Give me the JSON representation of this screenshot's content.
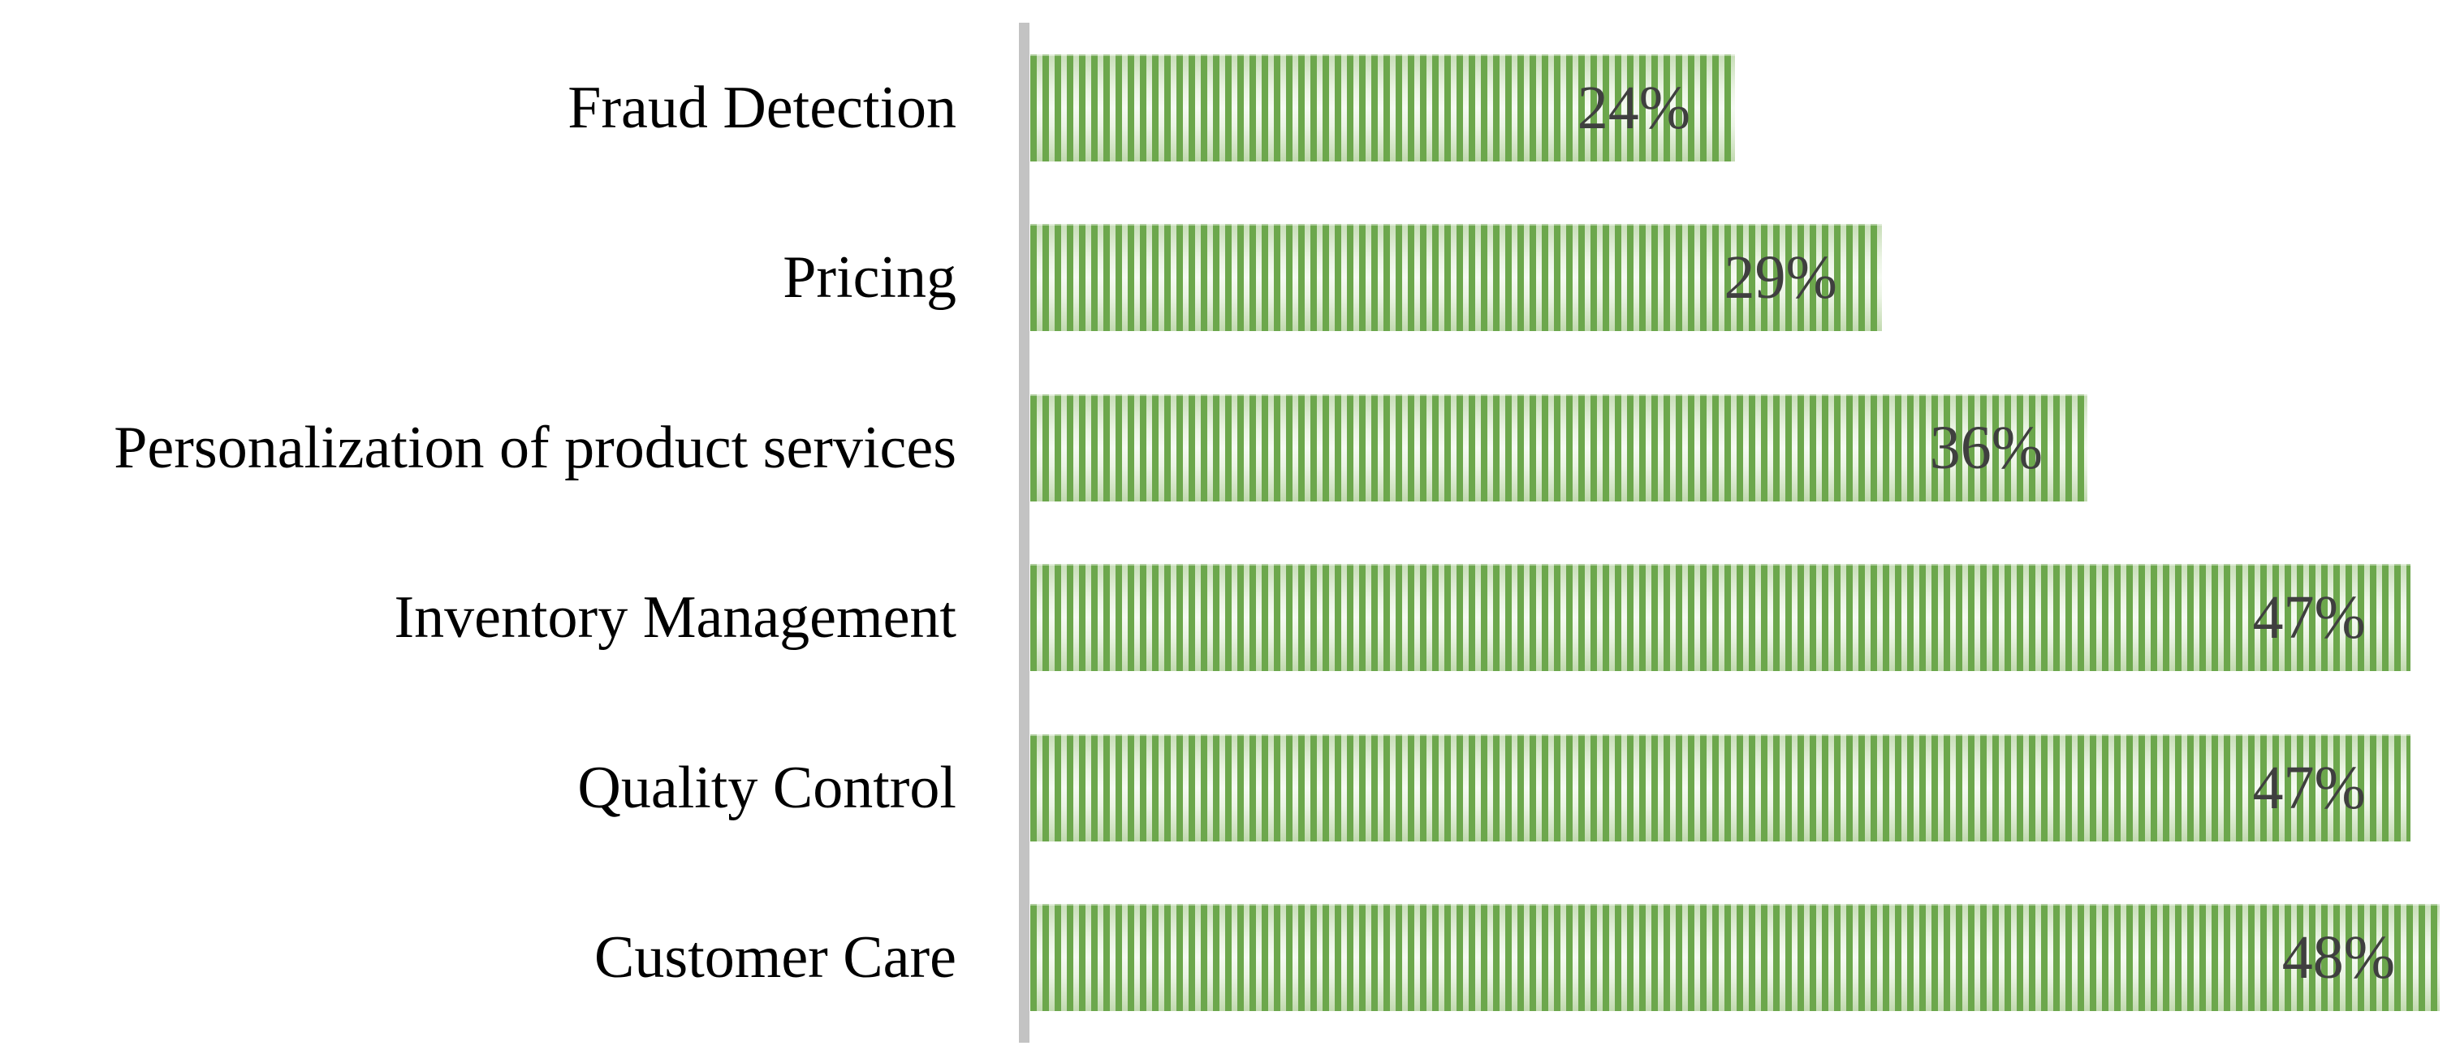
{
  "chart_data": {
    "type": "bar",
    "orientation": "horizontal",
    "title": "",
    "xlabel": "",
    "ylabel": "",
    "categories": [
      "Fraud Detection",
      "Pricing",
      "Personalization of product services",
      "Inventory Management",
      "Quality Control",
      "Customer Care"
    ],
    "values": [
      24,
      29,
      36,
      47,
      47,
      48
    ],
    "value_labels": [
      "24%",
      "29%",
      "36%",
      "47%",
      "47%",
      "48%"
    ],
    "xlim": [
      0,
      48
    ],
    "grid": false,
    "legend": false,
    "value_labels_position": "inside-end",
    "colors": {
      "bar_stripe_green": "#6CA74C",
      "bar_stripe_light": "#EAF3E3",
      "axis_line": "#C3C3C3",
      "category_label": "#000000",
      "value_label": "#3F3F3F",
      "background": "#FFFFFF"
    }
  }
}
